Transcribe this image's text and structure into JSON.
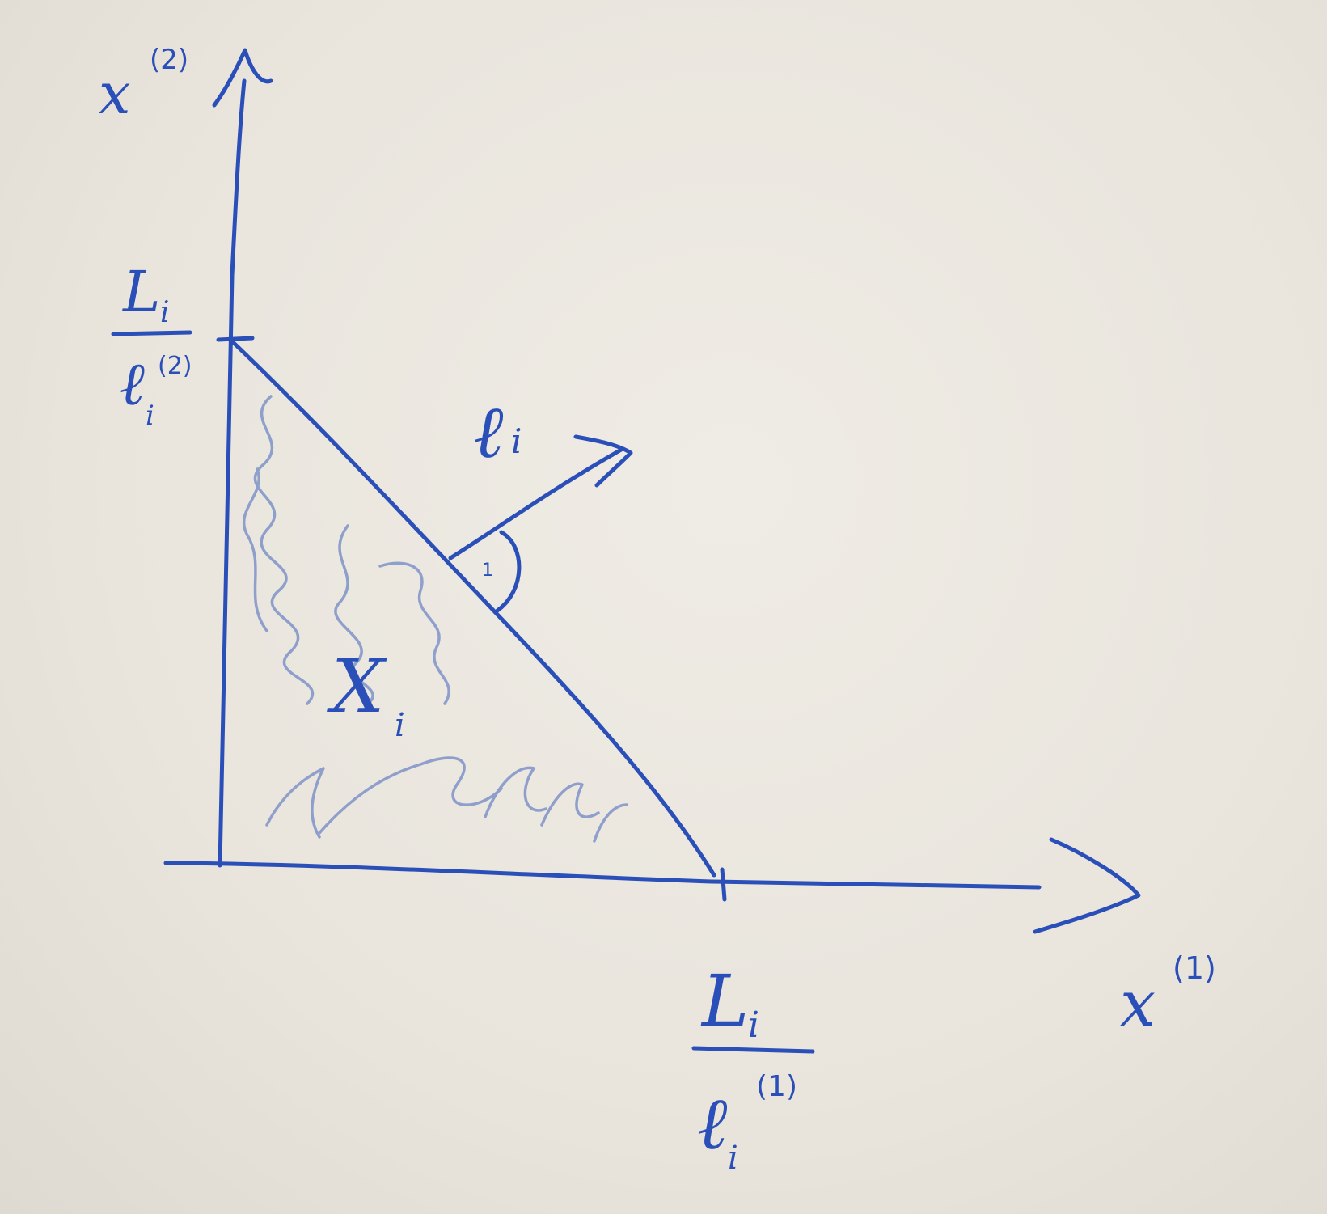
{
  "diagram": {
    "ink_color": "#2a4fb8",
    "hatch_color": "#7f93c8",
    "paper_color": "#ebe7df",
    "y_axis_label": {
      "base": "x",
      "superscript": "(2)"
    },
    "x_axis_label": {
      "base": "x",
      "superscript": "(1)"
    },
    "y_intercept_label": {
      "numerator": "L",
      "numerator_sub": "i",
      "denominator": "ℓ",
      "denominator_sub": "i",
      "denominator_sup": "(2)"
    },
    "x_intercept_label": {
      "numerator": "L",
      "numerator_sub": "i",
      "denominator": "ℓ",
      "denominator_sub": "i",
      "denominator_sup": "(1)"
    },
    "normal_vector_label": {
      "base": "ℓ",
      "sub": "i"
    },
    "region_label": {
      "base": "X",
      "sub": "i"
    },
    "right_angle_mark": "1"
  }
}
